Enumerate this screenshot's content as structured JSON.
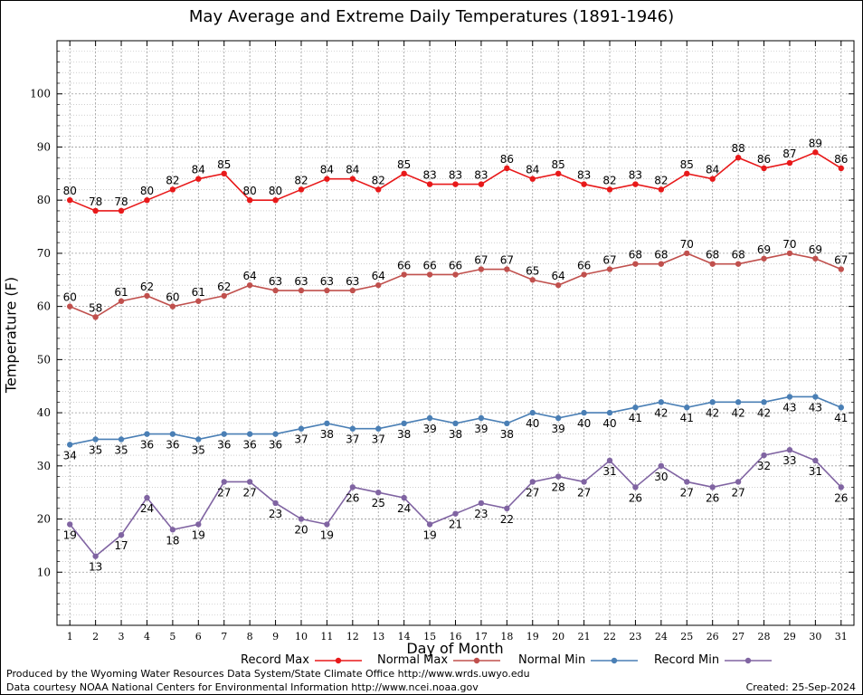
{
  "chart_data": {
    "type": "line",
    "title": "May Average and Extreme Daily Temperatures (1891-1946)",
    "xlabel": "Day of Month",
    "ylabel": "Temperature (F)",
    "x": [
      1,
      2,
      3,
      4,
      5,
      6,
      7,
      8,
      9,
      10,
      11,
      12,
      13,
      14,
      15,
      16,
      17,
      18,
      19,
      20,
      21,
      22,
      23,
      24,
      25,
      26,
      27,
      28,
      29,
      30,
      31
    ],
    "xlim": [
      0.5,
      31.5
    ],
    "ylim": [
      0,
      110
    ],
    "y_ticks": [
      10,
      20,
      30,
      40,
      50,
      60,
      70,
      80,
      90,
      100
    ],
    "grid": true,
    "legend_position": "bottom",
    "series": [
      {
        "name": "Record Max",
        "color": "#e8191a",
        "label_position": "above",
        "values": [
          80,
          78,
          78,
          80,
          82,
          84,
          85,
          80,
          80,
          82,
          84,
          84,
          82,
          85,
          83,
          83,
          83,
          86,
          84,
          85,
          83,
          82,
          83,
          82,
          85,
          84,
          88,
          86,
          87,
          89,
          86
        ]
      },
      {
        "name": "Normal Max",
        "color": "#c0504d",
        "label_position": "above",
        "values": [
          60,
          58,
          61,
          62,
          60,
          61,
          62,
          64,
          63,
          63,
          63,
          63,
          64,
          66,
          66,
          66,
          67,
          67,
          65,
          64,
          66,
          67,
          68,
          68,
          70,
          68,
          68,
          69,
          70,
          69,
          67
        ]
      },
      {
        "name": "Normal Min",
        "color": "#4a7fb5",
        "label_position": "below",
        "values": [
          34,
          35,
          35,
          36,
          36,
          35,
          36,
          36,
          36,
          37,
          38,
          37,
          37,
          38,
          39,
          38,
          39,
          38,
          40,
          39,
          40,
          40,
          41,
          42,
          41,
          42,
          42,
          42,
          43,
          43,
          41
        ]
      },
      {
        "name": "Record Min",
        "color": "#8064a2",
        "label_position": "below",
        "values": [
          19,
          13,
          17,
          24,
          18,
          19,
          27,
          27,
          23,
          20,
          19,
          26,
          25,
          24,
          19,
          21,
          23,
          22,
          27,
          28,
          27,
          31,
          26,
          30,
          27,
          26,
          27,
          32,
          33,
          31,
          26
        ]
      }
    ]
  },
  "footer": {
    "line1": "Produced by the Wyoming Water Resources Data System/State Climate Office http://www.wrds.uwyo.edu",
    "line2": "Data courtesy NOAA National Centers for Environmental Information http://www.ncei.noaa.gov",
    "created": "Created:  25-Sep-2024"
  }
}
